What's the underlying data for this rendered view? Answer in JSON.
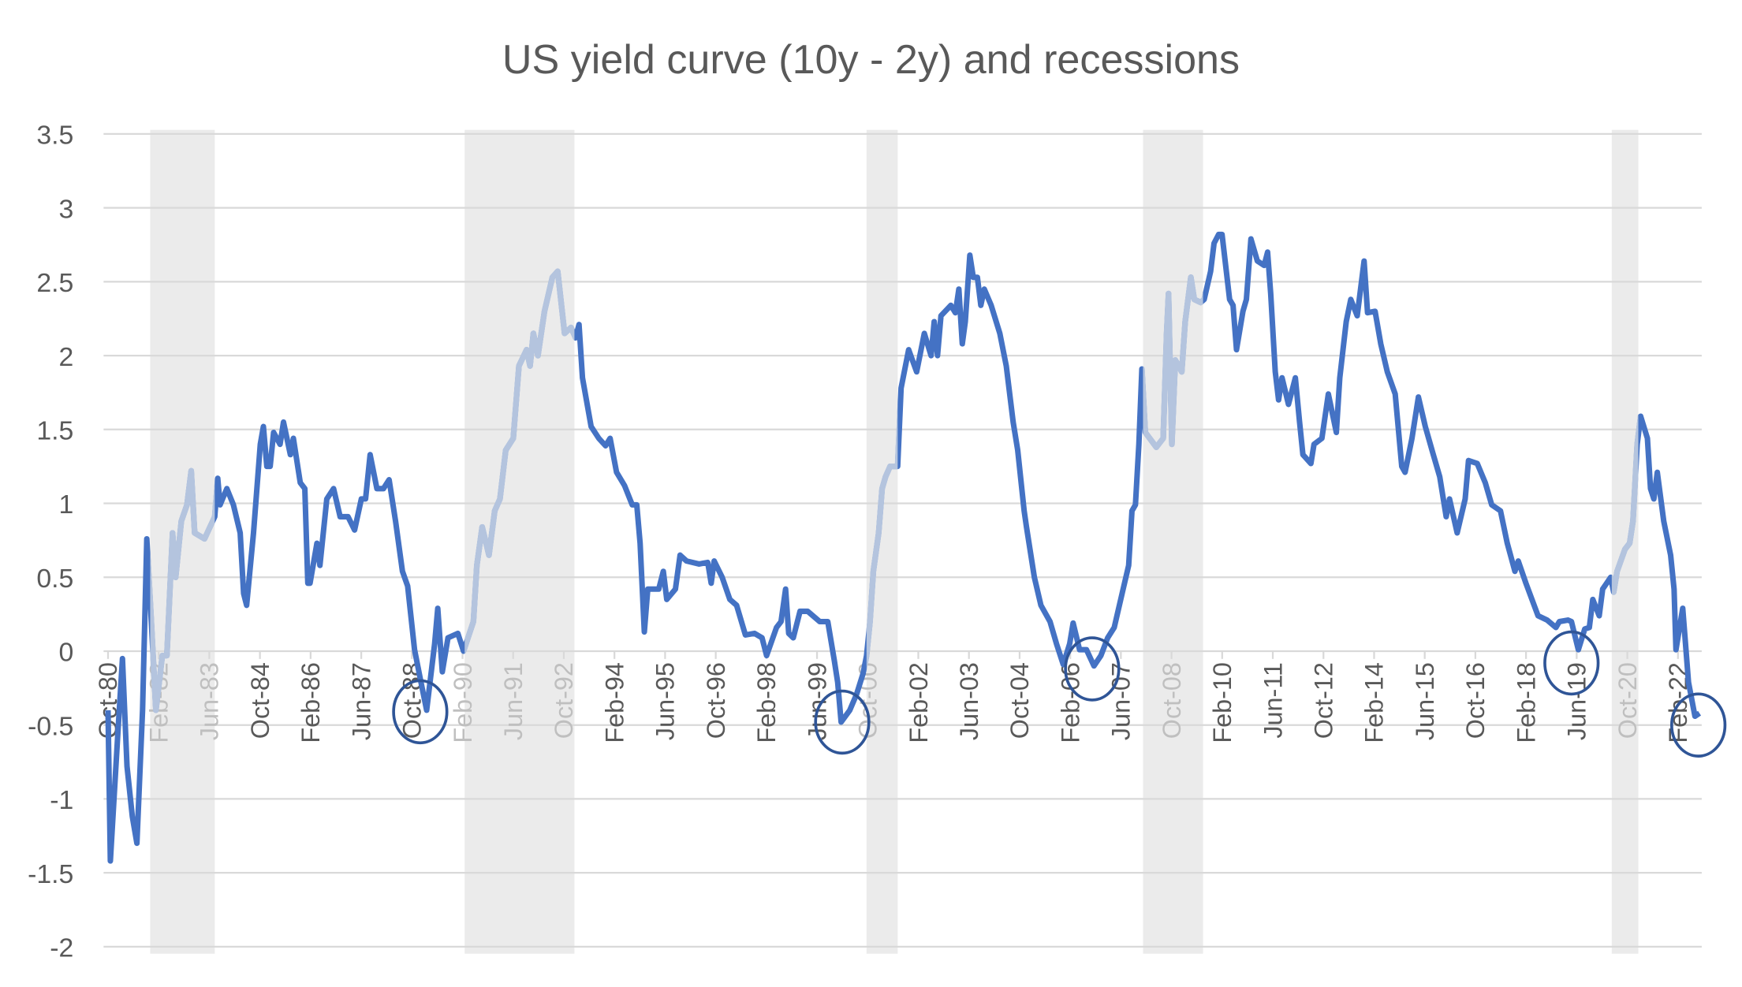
{
  "chart_data": {
    "type": "line",
    "title": "US yield curve (10y - 2y) and recessions",
    "xlabel": "",
    "ylabel": "",
    "x_unit": "decimal year",
    "xlim": [
      1980.75,
      2022.75
    ],
    "ylim": [
      -2,
      3.5
    ],
    "y_ticks": [
      "3.5",
      "3",
      "2.5",
      "2",
      "1.5",
      "1",
      "0.5",
      "0",
      "-0.5",
      "-1",
      "-1.5",
      "-2"
    ],
    "x_tick_labels": [
      "Oct-80",
      "Feb-82",
      "Jun-83",
      "Oct-84",
      "Feb-86",
      "Jun-87",
      "Oct-88",
      "Feb-90",
      "Jun-91",
      "Oct-92",
      "Feb-94",
      "Jun-95",
      "Oct-96",
      "Feb-98",
      "Jun-99",
      "Oct-00",
      "Feb-02",
      "Jun-03",
      "Oct-04",
      "Feb-06",
      "Jun-07",
      "Oct-08",
      "Feb-10",
      "Jun-11",
      "Oct-12",
      "Feb-14",
      "Jun-15",
      "Oct-16",
      "Feb-18",
      "Jun-19",
      "Oct-20",
      "Feb-22"
    ],
    "x_tick_interval_months": 16,
    "grid": true,
    "legend": "none",
    "colors": {
      "line": "#4472c4",
      "line_in_recession": "#b4c4de",
      "recession_band": "#ebebeb",
      "circle": "#2f5597",
      "text": "#595959",
      "text_in_recession": "#bfbfbf",
      "grid": "#d9d9d9"
    },
    "recessions": [
      [
        1981.86,
        1983.56
      ],
      [
        1990.14,
        1993.03
      ],
      [
        2000.72,
        2001.54
      ],
      [
        2008.0,
        2009.58
      ],
      [
        2020.34,
        2021.04
      ]
    ],
    "highlight_circles": [
      [
        1988.97,
        -0.41
      ],
      [
        2000.08,
        -0.48
      ],
      [
        2006.66,
        -0.12
      ],
      [
        2019.28,
        -0.08
      ],
      [
        2022.62,
        -0.5
      ]
    ],
    "series": [
      {
        "name": "10y - 2y spread",
        "points": [
          [
            1980.75,
            -0.4
          ],
          [
            1980.81,
            -1.42
          ],
          [
            1981.01,
            -0.55
          ],
          [
            1981.13,
            -0.05
          ],
          [
            1981.25,
            -0.78
          ],
          [
            1981.39,
            -1.12
          ],
          [
            1981.51,
            -1.3
          ],
          [
            1981.66,
            -0.4
          ],
          [
            1981.77,
            0.76
          ],
          [
            1981.89,
            0.2
          ],
          [
            1982.01,
            -0.4
          ],
          [
            1982.18,
            -0.03
          ],
          [
            1982.3,
            -0.03
          ],
          [
            1982.45,
            0.8
          ],
          [
            1982.53,
            0.5
          ],
          [
            1982.68,
            0.88
          ],
          [
            1982.83,
            0.99
          ],
          [
            1982.94,
            1.22
          ],
          [
            1983.03,
            0.8
          ],
          [
            1983.29,
            0.76
          ],
          [
            1983.56,
            0.91
          ],
          [
            1983.64,
            1.17
          ],
          [
            1983.7,
            0.99
          ],
          [
            1983.88,
            1.1
          ],
          [
            1984.05,
            0.99
          ],
          [
            1984.23,
            0.8
          ],
          [
            1984.32,
            0.39
          ],
          [
            1984.4,
            0.31
          ],
          [
            1984.58,
            0.8
          ],
          [
            1984.76,
            1.4
          ],
          [
            1984.84,
            1.52
          ],
          [
            1984.93,
            1.25
          ],
          [
            1985.02,
            1.25
          ],
          [
            1985.11,
            1.48
          ],
          [
            1985.28,
            1.4
          ],
          [
            1985.37,
            1.55
          ],
          [
            1985.55,
            1.33
          ],
          [
            1985.63,
            1.44
          ],
          [
            1985.81,
            1.14
          ],
          [
            1985.93,
            1.1
          ],
          [
            1986.01,
            0.46
          ],
          [
            1986.07,
            0.46
          ],
          [
            1986.25,
            0.73
          ],
          [
            1986.33,
            0.58
          ],
          [
            1986.51,
            1.03
          ],
          [
            1986.69,
            1.1
          ],
          [
            1986.86,
            0.91
          ],
          [
            1987.07,
            0.91
          ],
          [
            1987.24,
            0.82
          ],
          [
            1987.42,
            1.03
          ],
          [
            1987.53,
            1.03
          ],
          [
            1987.65,
            1.33
          ],
          [
            1987.83,
            1.1
          ],
          [
            1988.0,
            1.1
          ],
          [
            1988.15,
            1.16
          ],
          [
            1988.32,
            0.88
          ],
          [
            1988.5,
            0.54
          ],
          [
            1988.64,
            0.44
          ],
          [
            1988.82,
            0.01
          ],
          [
            1988.99,
            -0.21
          ],
          [
            1989.14,
            -0.4
          ],
          [
            1989.35,
            0.05
          ],
          [
            1989.43,
            0.29
          ],
          [
            1989.55,
            -0.14
          ],
          [
            1989.7,
            0.09
          ],
          [
            1989.96,
            0.12
          ],
          [
            1990.11,
            0.0
          ],
          [
            1990.37,
            0.2
          ],
          [
            1990.46,
            0.58
          ],
          [
            1990.6,
            0.84
          ],
          [
            1990.78,
            0.65
          ],
          [
            1990.93,
            0.95
          ],
          [
            1991.07,
            1.03
          ],
          [
            1991.22,
            1.36
          ],
          [
            1991.42,
            1.44
          ],
          [
            1991.57,
            1.93
          ],
          [
            1991.77,
            2.04
          ],
          [
            1991.86,
            1.93
          ],
          [
            1991.95,
            2.15
          ],
          [
            1992.07,
            2.0
          ],
          [
            1992.24,
            2.3
          ],
          [
            1992.45,
            2.53
          ],
          [
            1992.59,
            2.57
          ],
          [
            1992.77,
            2.15
          ],
          [
            1992.94,
            2.19
          ],
          [
            1993.06,
            2.12
          ],
          [
            1993.15,
            2.21
          ],
          [
            1993.24,
            1.85
          ],
          [
            1993.47,
            1.52
          ],
          [
            1993.67,
            1.44
          ],
          [
            1993.85,
            1.39
          ],
          [
            1993.97,
            1.44
          ],
          [
            1994.14,
            1.21
          ],
          [
            1994.35,
            1.12
          ],
          [
            1994.55,
            0.99
          ],
          [
            1994.67,
            0.99
          ],
          [
            1994.76,
            0.73
          ],
          [
            1994.87,
            0.13
          ],
          [
            1994.96,
            0.42
          ],
          [
            1995.25,
            0.42
          ],
          [
            1995.37,
            0.54
          ],
          [
            1995.46,
            0.35
          ],
          [
            1995.69,
            0.42
          ],
          [
            1995.81,
            0.65
          ],
          [
            1995.98,
            0.61
          ],
          [
            1996.31,
            0.59
          ],
          [
            1996.54,
            0.6
          ],
          [
            1996.63,
            0.46
          ],
          [
            1996.71,
            0.61
          ],
          [
            1996.92,
            0.5
          ],
          [
            1997.12,
            0.35
          ],
          [
            1997.3,
            0.31
          ],
          [
            1997.53,
            0.11
          ],
          [
            1997.77,
            0.12
          ],
          [
            1997.97,
            0.09
          ],
          [
            1998.09,
            -0.03
          ],
          [
            1998.35,
            0.16
          ],
          [
            1998.47,
            0.2
          ],
          [
            1998.59,
            0.42
          ],
          [
            1998.67,
            0.12
          ],
          [
            1998.79,
            0.09
          ],
          [
            1998.97,
            0.27
          ],
          [
            1999.17,
            0.27
          ],
          [
            1999.49,
            0.2
          ],
          [
            1999.7,
            0.2
          ],
          [
            1999.87,
            -0.06
          ],
          [
            1999.96,
            -0.21
          ],
          [
            2000.05,
            -0.48
          ],
          [
            2000.28,
            -0.4
          ],
          [
            2000.46,
            -0.29
          ],
          [
            2000.63,
            -0.15
          ],
          [
            2000.72,
            -0.03
          ],
          [
            2000.81,
            0.2
          ],
          [
            2000.9,
            0.54
          ],
          [
            2001.04,
            0.8
          ],
          [
            2001.13,
            1.1
          ],
          [
            2001.22,
            1.18
          ],
          [
            2001.34,
            1.25
          ],
          [
            2001.54,
            1.25
          ],
          [
            2001.63,
            1.78
          ],
          [
            2001.83,
            2.04
          ],
          [
            2002.04,
            1.89
          ],
          [
            2002.24,
            2.15
          ],
          [
            2002.42,
            2.0
          ],
          [
            2002.5,
            2.23
          ],
          [
            2002.59,
            2.0
          ],
          [
            2002.68,
            2.27
          ],
          [
            2002.94,
            2.34
          ],
          [
            2003.06,
            2.29
          ],
          [
            2003.15,
            2.45
          ],
          [
            2003.24,
            2.08
          ],
          [
            2003.32,
            2.23
          ],
          [
            2003.44,
            2.68
          ],
          [
            2003.53,
            2.53
          ],
          [
            2003.64,
            2.53
          ],
          [
            2003.73,
            2.34
          ],
          [
            2003.82,
            2.45
          ],
          [
            2004.0,
            2.34
          ],
          [
            2004.23,
            2.15
          ],
          [
            2004.4,
            1.93
          ],
          [
            2004.58,
            1.55
          ],
          [
            2004.7,
            1.36
          ],
          [
            2004.87,
            0.95
          ],
          [
            2004.93,
            0.84
          ],
          [
            2005.14,
            0.5
          ],
          [
            2005.31,
            0.31
          ],
          [
            2005.55,
            0.2
          ],
          [
            2005.72,
            0.05
          ],
          [
            2005.9,
            -0.09
          ],
          [
            2006.07,
            0.05
          ],
          [
            2006.16,
            0.19
          ],
          [
            2006.33,
            0.01
          ],
          [
            2006.51,
            0.01
          ],
          [
            2006.71,
            -0.1
          ],
          [
            2006.89,
            -0.03
          ],
          [
            2007.07,
            0.09
          ],
          [
            2007.24,
            0.16
          ],
          [
            2007.45,
            0.39
          ],
          [
            2007.62,
            0.58
          ],
          [
            2007.71,
            0.95
          ],
          [
            2007.8,
            0.99
          ],
          [
            2007.89,
            1.4
          ],
          [
            2007.97,
            1.91
          ],
          [
            2008.06,
            1.48
          ],
          [
            2008.35,
            1.38
          ],
          [
            2008.53,
            1.44
          ],
          [
            2008.62,
            2.15
          ],
          [
            2008.67,
            2.42
          ],
          [
            2008.76,
            1.4
          ],
          [
            2008.85,
            1.97
          ],
          [
            2009.02,
            1.89
          ],
          [
            2009.11,
            2.23
          ],
          [
            2009.26,
            2.53
          ],
          [
            2009.35,
            2.38
          ],
          [
            2009.52,
            2.36
          ],
          [
            2009.61,
            2.38
          ],
          [
            2009.78,
            2.57
          ],
          [
            2009.87,
            2.76
          ],
          [
            2009.99,
            2.82
          ],
          [
            2010.08,
            2.82
          ],
          [
            2010.28,
            2.38
          ],
          [
            2010.37,
            2.34
          ],
          [
            2010.46,
            2.04
          ],
          [
            2010.63,
            2.3
          ],
          [
            2010.72,
            2.38
          ],
          [
            2010.84,
            2.79
          ],
          [
            2011.01,
            2.64
          ],
          [
            2011.19,
            2.61
          ],
          [
            2011.28,
            2.7
          ],
          [
            2011.36,
            2.42
          ],
          [
            2011.48,
            1.89
          ],
          [
            2011.57,
            1.7
          ],
          [
            2011.66,
            1.85
          ],
          [
            2011.83,
            1.67
          ],
          [
            2012.01,
            1.85
          ],
          [
            2012.12,
            1.55
          ],
          [
            2012.21,
            1.33
          ],
          [
            2012.42,
            1.27
          ],
          [
            2012.5,
            1.4
          ],
          [
            2012.71,
            1.44
          ],
          [
            2012.88,
            1.74
          ],
          [
            2013.09,
            1.48
          ],
          [
            2013.18,
            1.85
          ],
          [
            2013.35,
            2.23
          ],
          [
            2013.47,
            2.38
          ],
          [
            2013.64,
            2.27
          ],
          [
            2013.82,
            2.64
          ],
          [
            2013.91,
            2.29
          ],
          [
            2014.11,
            2.3
          ],
          [
            2014.26,
            2.08
          ],
          [
            2014.43,
            1.89
          ],
          [
            2014.64,
            1.74
          ],
          [
            2014.81,
            1.25
          ],
          [
            2014.9,
            1.21
          ],
          [
            2015.08,
            1.44
          ],
          [
            2015.25,
            1.72
          ],
          [
            2015.43,
            1.52
          ],
          [
            2015.63,
            1.34
          ],
          [
            2015.81,
            1.18
          ],
          [
            2015.98,
            0.91
          ],
          [
            2016.07,
            1.03
          ],
          [
            2016.27,
            0.8
          ],
          [
            2016.48,
            1.03
          ],
          [
            2016.57,
            1.29
          ],
          [
            2016.8,
            1.27
          ],
          [
            2017.01,
            1.14
          ],
          [
            2017.18,
            0.99
          ],
          [
            2017.41,
            0.95
          ],
          [
            2017.59,
            0.73
          ],
          [
            2017.79,
            0.54
          ],
          [
            2017.88,
            0.61
          ],
          [
            2018.08,
            0.46
          ],
          [
            2018.4,
            0.24
          ],
          [
            2018.64,
            0.21
          ],
          [
            2018.87,
            0.16
          ],
          [
            2018.96,
            0.2
          ],
          [
            2019.19,
            0.21
          ],
          [
            2019.28,
            0.2
          ],
          [
            2019.46,
            0.01
          ],
          [
            2019.63,
            0.15
          ],
          [
            2019.75,
            0.16
          ],
          [
            2019.84,
            0.35
          ],
          [
            2020.01,
            0.24
          ],
          [
            2020.1,
            0.42
          ],
          [
            2020.31,
            0.5
          ],
          [
            2020.39,
            0.4
          ],
          [
            2020.48,
            0.54
          ],
          [
            2020.69,
            0.69
          ],
          [
            2020.81,
            0.73
          ],
          [
            2020.9,
            0.88
          ],
          [
            2021.01,
            1.4
          ],
          [
            2021.1,
            1.59
          ],
          [
            2021.28,
            1.44
          ],
          [
            2021.36,
            1.1
          ],
          [
            2021.45,
            1.03
          ],
          [
            2021.54,
            1.21
          ],
          [
            2021.71,
            0.88
          ],
          [
            2021.89,
            0.65
          ],
          [
            2021.98,
            0.42
          ],
          [
            2022.03,
            0.01
          ],
          [
            2022.21,
            0.29
          ],
          [
            2022.36,
            -0.21
          ],
          [
            2022.53,
            -0.44
          ],
          [
            2022.65,
            -0.42
          ]
        ]
      }
    ]
  }
}
